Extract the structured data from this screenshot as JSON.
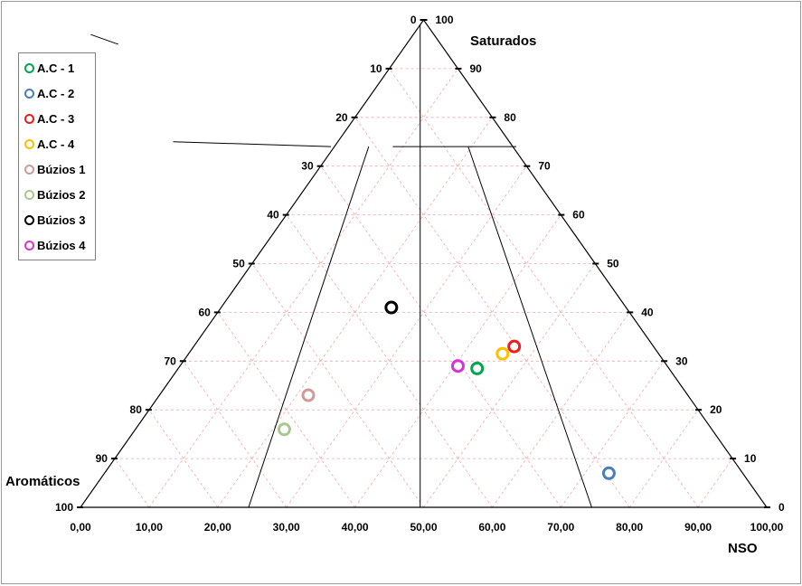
{
  "chart_data": {
    "type": "scatter",
    "subtype": "ternary",
    "axes": {
      "saturados": {
        "label": "Saturados",
        "ticks": [
          "0",
          "10",
          "20",
          "30",
          "40",
          "50",
          "60",
          "70",
          "80",
          "90",
          "100"
        ]
      },
      "aromaticos": {
        "label": "Aromáticos",
        "ticks": [
          "0",
          "10",
          "20",
          "30",
          "40",
          "50",
          "60",
          "70",
          "80",
          "90",
          "100"
        ]
      },
      "nso": {
        "label": "NSO",
        "ticks": [
          "0,00",
          "10,00",
          "20,00",
          "30,00",
          "40,00",
          "50,00",
          "60,00",
          "70,00",
          "80,00",
          "90,00",
          "100,00"
        ]
      }
    },
    "grid": true,
    "legend_position": "top-left",
    "region_lines": [
      {
        "from": {
          "x": 1.5,
          "y": 97
        },
        "to": {
          "x": 5.5,
          "y": 95
        }
      },
      {
        "from": {
          "x": 13.5,
          "y": 75
        },
        "to": {
          "x": 36.5,
          "y": 74
        }
      },
      {
        "from": {
          "x": 45.5,
          "y": 74
        },
        "to": {
          "x": 63.5,
          "y": 74
        }
      },
      {
        "from": {
          "x": 49.5,
          "y": 99
        },
        "to": {
          "x": 49.5,
          "y": 0
        }
      },
      {
        "from": {
          "x": 42,
          "y": 74
        },
        "to": {
          "x": 24.5,
          "y": 0
        }
      },
      {
        "from": {
          "x": 56.5,
          "y": 74
        },
        "to": {
          "x": 74.5,
          "y": 0
        }
      }
    ],
    "series": [
      {
        "name": "A.C - 1",
        "color": "#00a651",
        "points": [
          {
            "x": 57.8,
            "y": 28.5
          }
        ]
      },
      {
        "name": "A.C - 2",
        "color": "#4a7ebb",
        "points": [
          {
            "x": 77,
            "y": 7
          }
        ]
      },
      {
        "name": "A.C - 3",
        "color": "#ee1c1c",
        "points": [
          {
            "x": 63.2,
            "y": 33
          }
        ]
      },
      {
        "name": "A.C - 4",
        "color": "#ffc000",
        "points": [
          {
            "x": 61.5,
            "y": 31.5
          }
        ]
      },
      {
        "name": "Búzios 1",
        "color": "#d09a96",
        "points": [
          {
            "x": 33.2,
            "y": 23
          }
        ]
      },
      {
        "name": "Búzios 2",
        "color": "#a9c98c",
        "points": [
          {
            "x": 29.7,
            "y": 16
          }
        ]
      },
      {
        "name": "Búzios 3",
        "color": "#000000",
        "points": [
          {
            "x": 45.3,
            "y": 41
          }
        ]
      },
      {
        "name": "Búzios 4",
        "color": "#d633d6",
        "points": [
          {
            "x": 55,
            "y": 29
          }
        ]
      }
    ]
  }
}
